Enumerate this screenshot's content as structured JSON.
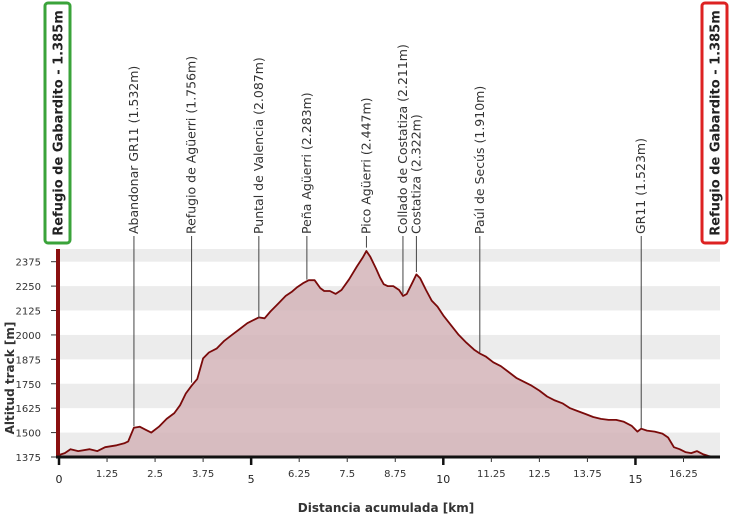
{
  "chart_data": {
    "type": "area",
    "xlabel": "Distancia acumulada [km]",
    "ylabel": "Altitud track [m]",
    "xlim": [
      0,
      17.2
    ],
    "ylim": [
      1375,
      2440
    ],
    "x_ticks_minor": [
      "1.25",
      "2.5",
      "3.75",
      "6.25",
      "7.5",
      "8.75",
      "11.25",
      "12.5",
      "13.75",
      "16.25"
    ],
    "x_ticks_major": [
      "0",
      "5",
      "10",
      "15"
    ],
    "y_ticks": [
      "1375",
      "1500",
      "1625",
      "1750",
      "1875",
      "2000",
      "2125",
      "2250",
      "2375"
    ],
    "colors": {
      "fill": "#d4b4b8",
      "line": "#7a0a0a",
      "start_box": "#3aa33a",
      "end_box": "#dd2222"
    },
    "grid": "horizontal bands",
    "start_label": "Refugio de Gabardito - 1.385m",
    "end_label": "Refugio de Gabardito - 1.385m",
    "waypoints": [
      {
        "x": 1.95,
        "y": 1532,
        "label": "Abandonar GR11 (1.532m)"
      },
      {
        "x": 3.45,
        "y": 1756,
        "label": "Refugio de Agüerri (1.756m)"
      },
      {
        "x": 5.2,
        "y": 2087,
        "label": "Puntal de Valencia (2.087m)"
      },
      {
        "x": 6.45,
        "y": 2283,
        "label": "Peña Agüerri (2.283m)"
      },
      {
        "x": 8.0,
        "y": 2447,
        "label": "Pico Agüerri (2.447m)"
      },
      {
        "x": 8.95,
        "y": 2211,
        "label": "Collado de Costatiza (2.211m)"
      },
      {
        "x": 9.3,
        "y": 2322,
        "label": "Costatiza (2.322m)"
      },
      {
        "x": 10.95,
        "y": 1910,
        "label": "Paúl de Secús (1.910m)"
      },
      {
        "x": 15.15,
        "y": 1523,
        "label": "GR11 (1.523m)"
      }
    ],
    "x": [
      0,
      0.15,
      0.3,
      0.5,
      0.8,
      1.0,
      1.2,
      1.5,
      1.7,
      1.8,
      1.95,
      2.1,
      2.25,
      2.4,
      2.6,
      2.8,
      3.0,
      3.15,
      3.3,
      3.45,
      3.6,
      3.75,
      3.9,
      4.1,
      4.3,
      4.5,
      4.7,
      4.9,
      5.1,
      5.2,
      5.35,
      5.5,
      5.7,
      5.9,
      6.05,
      6.2,
      6.35,
      6.5,
      6.65,
      6.8,
      6.9,
      7.05,
      7.2,
      7.35,
      7.55,
      7.75,
      7.9,
      8.0,
      8.1,
      8.25,
      8.35,
      8.45,
      8.55,
      8.7,
      8.85,
      8.95,
      9.05,
      9.2,
      9.3,
      9.4,
      9.55,
      9.7,
      9.85,
      10.0,
      10.2,
      10.4,
      10.6,
      10.8,
      10.95,
      11.1,
      11.3,
      11.5,
      11.7,
      11.9,
      12.1,
      12.3,
      12.5,
      12.7,
      12.9,
      13.1,
      13.3,
      13.5,
      13.7,
      13.9,
      14.1,
      14.3,
      14.5,
      14.7,
      14.9,
      15.05,
      15.15,
      15.3,
      15.5,
      15.7,
      15.85,
      16.0,
      16.15,
      16.3,
      16.45,
      16.6,
      16.75,
      16.9,
      17.05
    ],
    "y": [
      1385,
      1395,
      1415,
      1405,
      1415,
      1405,
      1425,
      1435,
      1445,
      1455,
      1525,
      1530,
      1515,
      1500,
      1530,
      1570,
      1600,
      1640,
      1700,
      1740,
      1775,
      1880,
      1910,
      1930,
      1970,
      2000,
      2030,
      2060,
      2080,
      2090,
      2085,
      2120,
      2160,
      2200,
      2220,
      2245,
      2265,
      2280,
      2280,
      2240,
      2225,
      2225,
      2210,
      2230,
      2285,
      2350,
      2395,
      2430,
      2400,
      2340,
      2295,
      2260,
      2250,
      2250,
      2230,
      2200,
      2210,
      2270,
      2310,
      2290,
      2230,
      2175,
      2145,
      2100,
      2050,
      2000,
      1960,
      1925,
      1905,
      1890,
      1860,
      1840,
      1810,
      1780,
      1760,
      1740,
      1715,
      1685,
      1665,
      1650,
      1625,
      1610,
      1595,
      1580,
      1570,
      1565,
      1565,
      1555,
      1535,
      1505,
      1520,
      1510,
      1505,
      1495,
      1475,
      1425,
      1415,
      1400,
      1395,
      1405,
      1390,
      1380,
      1375
    ]
  }
}
